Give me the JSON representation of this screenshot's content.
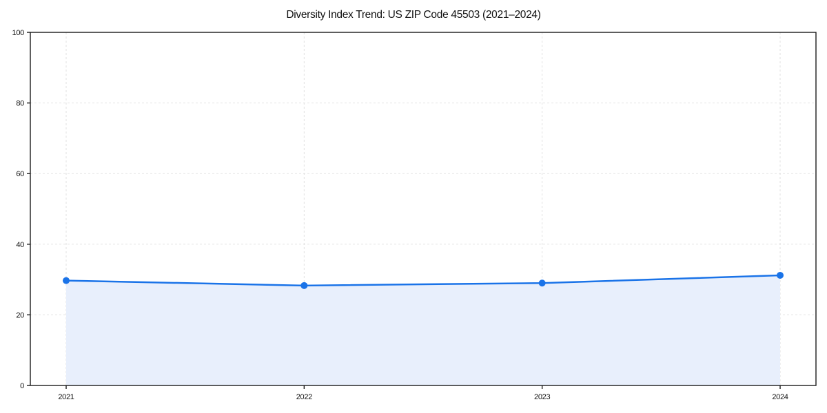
{
  "chart": {
    "title": "Diversity Index Trend: US ZIP Code 45503 (2021–2024)"
  },
  "chart_data": {
    "type": "line",
    "area_fill": true,
    "title": "Diversity Index Trend: US ZIP Code 45503 (2021–2024)",
    "categories": [
      "2021",
      "2022",
      "2023",
      "2024"
    ],
    "values": [
      29.7,
      28.3,
      29.0,
      31.2
    ],
    "xlabel": "",
    "ylabel": "",
    "ylim": [
      0,
      100
    ],
    "yticks": [
      0,
      20,
      40,
      60,
      80,
      100
    ],
    "grid": true,
    "grid_style": "dashed",
    "legend": "none",
    "marker": "circle",
    "colors": {
      "line": "#1a73e8",
      "fill": "#e8effc",
      "grid": "#e2e2e2",
      "axis": "#1a1a1a",
      "text": "#111111",
      "background": "#ffffff"
    }
  }
}
